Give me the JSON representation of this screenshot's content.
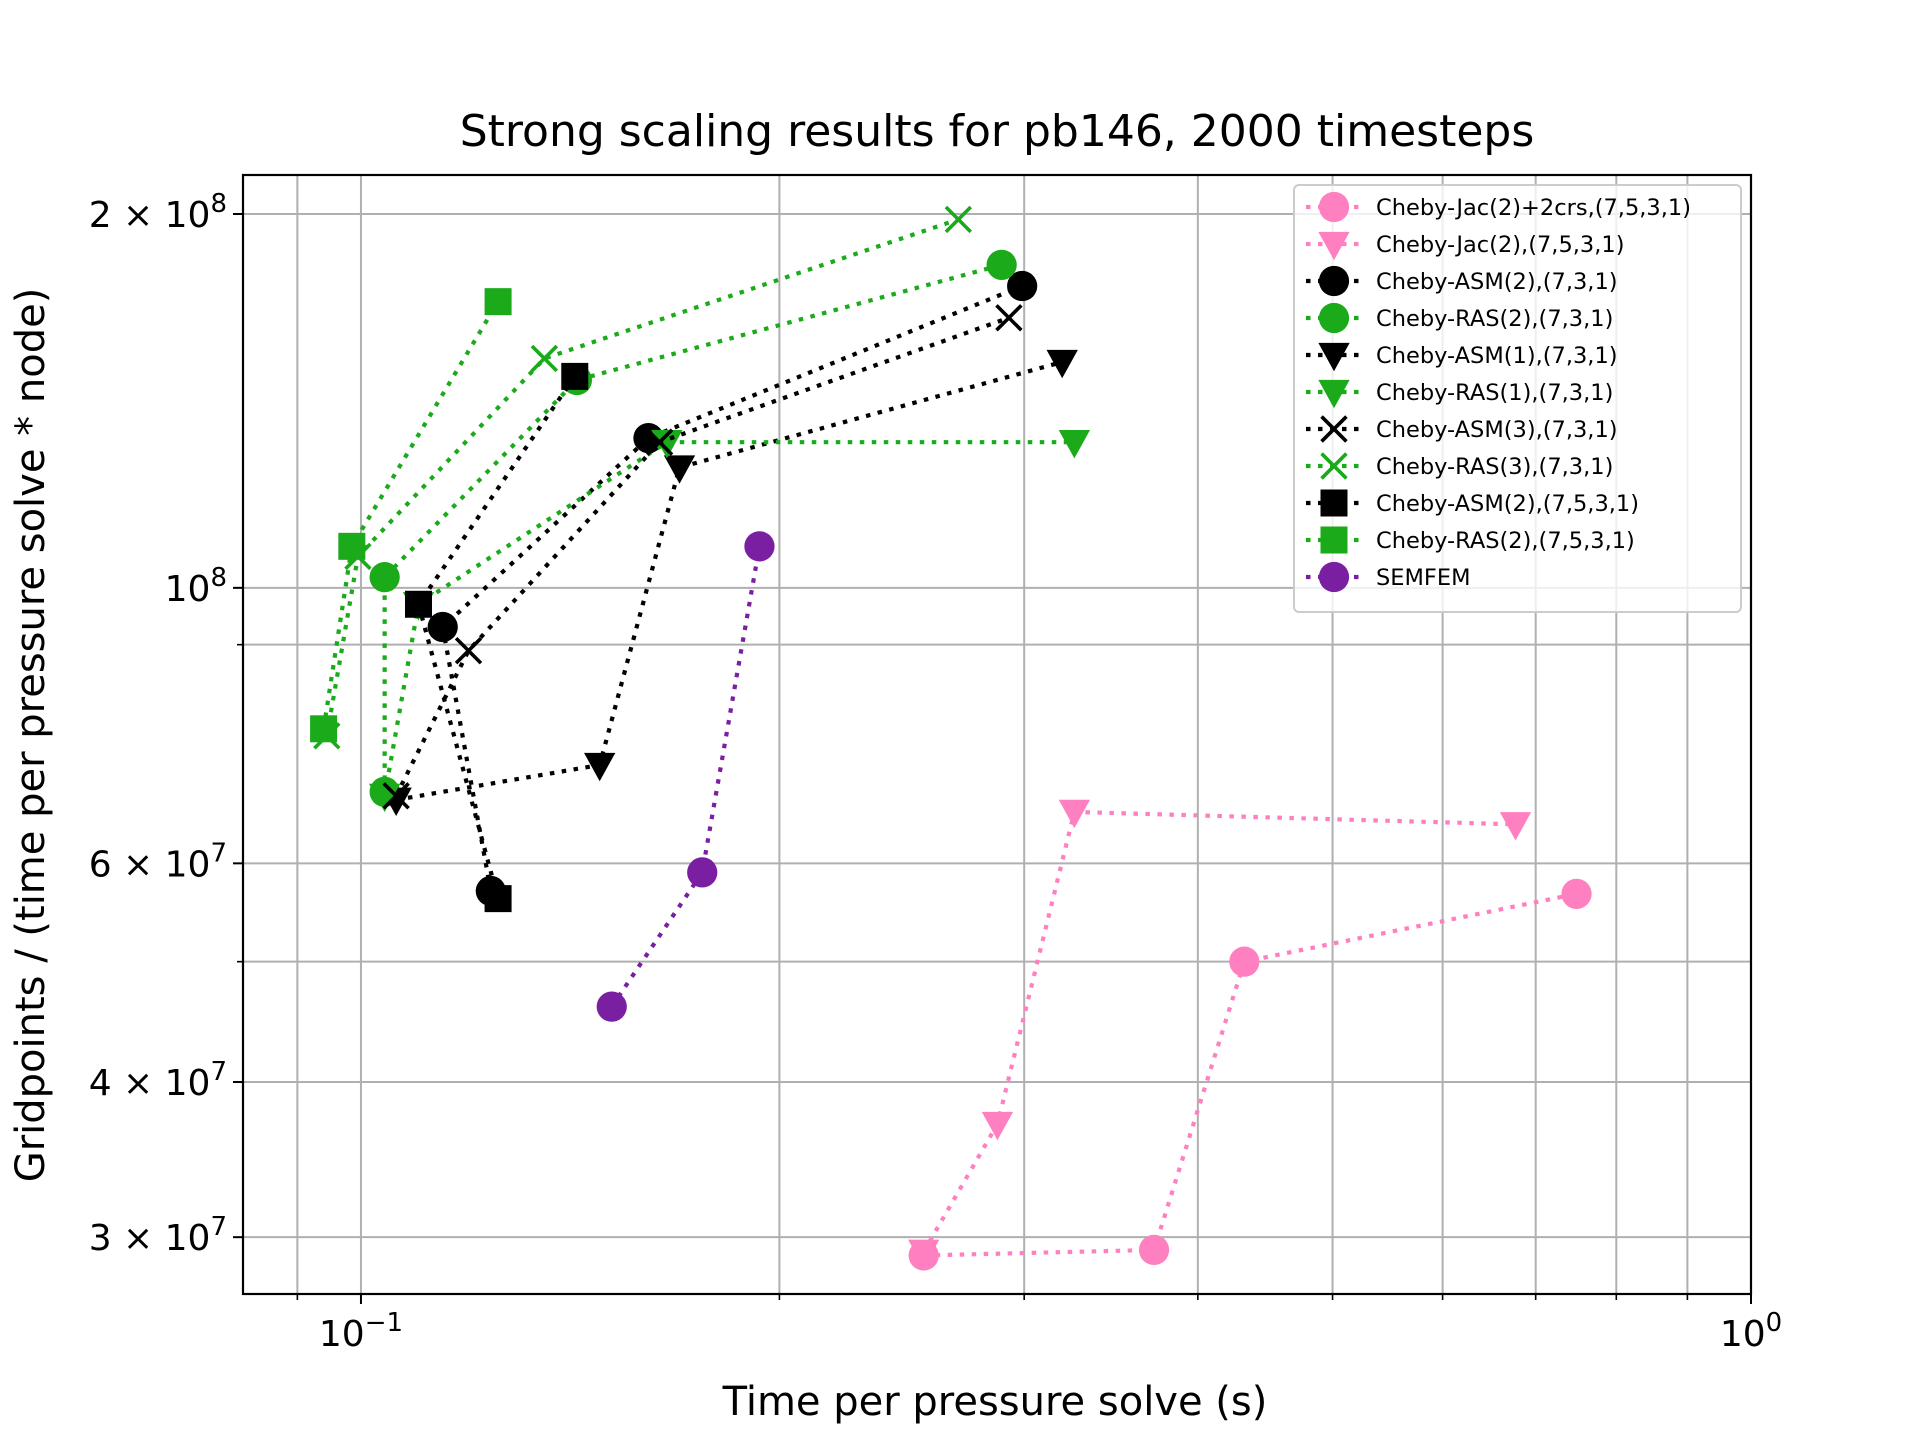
{
  "chart_data": {
    "type": "scatter",
    "title": "Strong scaling results for pb146, 2000 timesteps",
    "xlabel": "Time per pressure solve (s)",
    "ylabel": "Gridpoints / (time per pressure solve * node)",
    "xscale": "log",
    "yscale": "log",
    "xlim": [
      0.08225,
      1.0
    ],
    "ylim": [
      27000000.0,
      215000000.0
    ],
    "grid": true,
    "legend_position": "top-right",
    "x_major_ticks": [
      {
        "value": 0.1,
        "label": "10^-1"
      },
      {
        "value": 1.0,
        "label": "10^0"
      }
    ],
    "x_minor_ticks": [
      0.09,
      0.2,
      0.3,
      0.4,
      0.5,
      0.6,
      0.7,
      0.8,
      0.9
    ],
    "y_ticks": [
      {
        "value": 30000000.0,
        "label": "3 × 10^7"
      },
      {
        "value": 40000000.0,
        "label": "4 × 10^7"
      },
      {
        "value": 60000000.0,
        "label": "6 × 10^7"
      },
      {
        "value": 100000000.0,
        "label": "10^8"
      },
      {
        "value": 200000000.0,
        "label": "2 × 10^8"
      }
    ],
    "y_minor_grid": [
      50000000.0,
      90000000.0
    ],
    "series": [
      {
        "name": "Cheby-Jac(2)+2crs,(7,5,3,1)",
        "color": "#ff80c0",
        "marker": "circle",
        "points": [
          [
            0.254,
            29000000.0
          ],
          [
            0.372,
            29300000.0
          ],
          [
            0.432,
            50000000.0
          ],
          [
            0.749,
            56700000.0
          ]
        ]
      },
      {
        "name": "Cheby-Jac(2),(7,5,3,1)",
        "color": "#ff80c0",
        "marker": "triangle-down",
        "points": [
          [
            0.254,
            29200000.0
          ],
          [
            0.287,
            37000000.0
          ],
          [
            0.326,
            66000000.0
          ],
          [
            0.677,
            64500000.0
          ]
        ]
      },
      {
        "name": "Cheby-ASM(2),(7,3,1)",
        "color": "#000000",
        "marker": "circle",
        "points": [
          [
            0.124,
            57000000.0
          ],
          [
            0.1145,
            93000000.0
          ],
          [
            0.161,
            132000000.0
          ],
          [
            0.299,
            175000000.0
          ]
        ]
      },
      {
        "name": "Cheby-RAS(2),(7,3,1)",
        "color": "#1aaa1a",
        "marker": "circle",
        "points": [
          [
            0.104,
            68500000.0
          ],
          [
            0.104,
            102000000.0
          ],
          [
            0.143,
            147000000.0
          ],
          [
            0.289,
            182000000.0
          ]
        ]
      },
      {
        "name": "Cheby-ASM(1),(7,3,1)",
        "color": "#000000",
        "marker": "triangle-down",
        "points": [
          [
            0.106,
            67500000.0
          ],
          [
            0.1485,
            72000000.0
          ],
          [
            0.1695,
            125000000.0
          ],
          [
            0.3195,
            152000000.0
          ]
        ]
      },
      {
        "name": "Cheby-RAS(1),(7,3,1)",
        "color": "#1aaa1a",
        "marker": "triangle-down",
        "points": [
          [
            0.104,
            68000000.0
          ],
          [
            0.11,
            97000000.0
          ],
          [
            0.166,
            131000000.0
          ],
          [
            0.326,
            131000000.0
          ]
        ]
      },
      {
        "name": "Cheby-ASM(3),(7,3,1)",
        "color": "#000000",
        "marker": "x",
        "points": [
          [
            0.106,
            68000000.0
          ],
          [
            0.1195,
            89000000.0
          ],
          [
            0.164,
            131000000.0
          ],
          [
            0.2925,
            165000000.0
          ]
        ]
      },
      {
        "name": "Cheby-RAS(3),(7,3,1)",
        "color": "#1aaa1a",
        "marker": "x",
        "points": [
          [
            0.0945,
            76000000.0
          ],
          [
            0.0995,
            106000000.0
          ],
          [
            0.1355,
            153000000.0
          ],
          [
            0.269,
            198000000.0
          ]
        ]
      },
      {
        "name": "Cheby-ASM(2),(7,5,3,1)",
        "color": "#000000",
        "marker": "square",
        "points": [
          [
            0.1255,
            56200000.0
          ],
          [
            0.11,
            97000000.0
          ],
          [
            0.1425,
            148000000.0
          ]
        ]
      },
      {
        "name": "Cheby-RAS(2),(7,5,3,1)",
        "color": "#1aaa1a",
        "marker": "square",
        "points": [
          [
            0.094,
            77000000.0
          ],
          [
            0.0985,
            108000000.0
          ],
          [
            0.1255,
            170000000.0
          ]
        ]
      },
      {
        "name": "SEMFEM",
        "color": "#7b1fa2",
        "marker": "circle",
        "points": [
          [
            0.1515,
            46000000.0
          ],
          [
            0.176,
            59000000.0
          ],
          [
            0.1935,
            108000000.0
          ]
        ]
      }
    ]
  }
}
